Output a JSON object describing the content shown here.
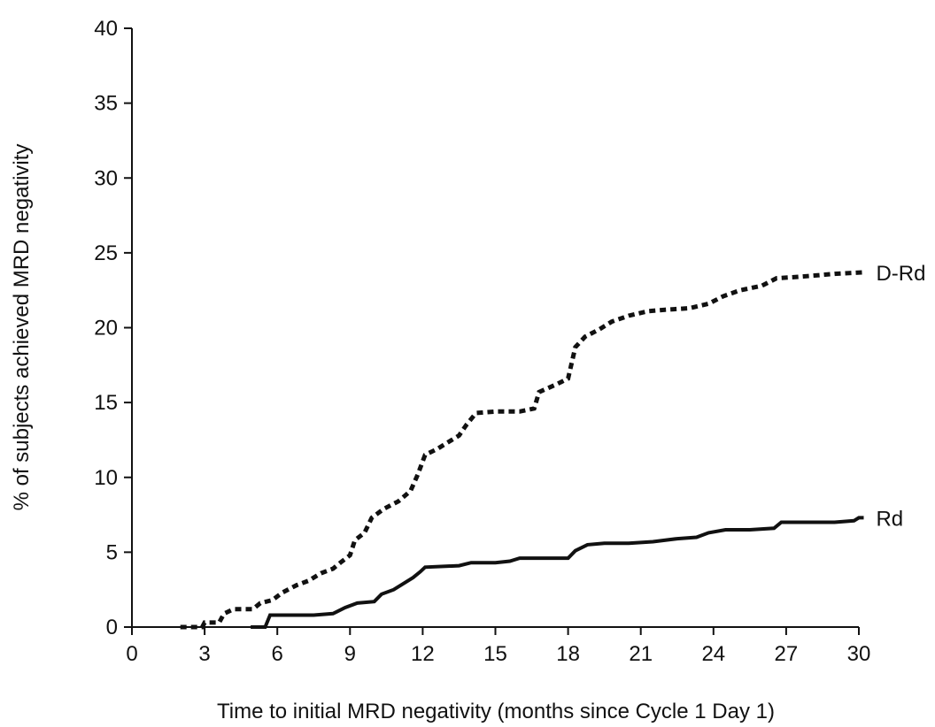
{
  "chart_data": {
    "type": "line",
    "title": "",
    "xlabel": "Time to initial MRD negativity (months since Cycle 1 Day 1)",
    "ylabel": "% of subjects achieved MRD negativity",
    "xlim": [
      0,
      30
    ],
    "ylim": [
      0,
      40
    ],
    "xticks": [
      0,
      3,
      6,
      9,
      12,
      15,
      18,
      21,
      24,
      27,
      30
    ],
    "yticks": [
      0,
      5,
      10,
      15,
      20,
      25,
      30,
      35,
      40
    ],
    "grid": false,
    "series": [
      {
        "name": "D-Rd",
        "style": "dashed",
        "color": "#111111",
        "points": [
          [
            2.0,
            0.0
          ],
          [
            2.9,
            0.0
          ],
          [
            3.0,
            0.3
          ],
          [
            3.6,
            0.3
          ],
          [
            3.8,
            0.9
          ],
          [
            4.2,
            1.2
          ],
          [
            5.0,
            1.2
          ],
          [
            5.3,
            1.6
          ],
          [
            5.8,
            1.8
          ],
          [
            6.2,
            2.3
          ],
          [
            6.8,
            2.8
          ],
          [
            7.3,
            3.1
          ],
          [
            7.8,
            3.6
          ],
          [
            8.3,
            3.9
          ],
          [
            8.6,
            4.3
          ],
          [
            9.0,
            4.8
          ],
          [
            9.2,
            5.8
          ],
          [
            9.6,
            6.3
          ],
          [
            9.9,
            7.3
          ],
          [
            10.4,
            7.9
          ],
          [
            11.0,
            8.4
          ],
          [
            11.5,
            9.1
          ],
          [
            11.8,
            10.2
          ],
          [
            12.1,
            11.5
          ],
          [
            12.6,
            11.9
          ],
          [
            13.0,
            12.3
          ],
          [
            13.5,
            12.8
          ],
          [
            13.8,
            13.5
          ],
          [
            14.2,
            14.3
          ],
          [
            15.0,
            14.4
          ],
          [
            16.0,
            14.4
          ],
          [
            16.6,
            14.6
          ],
          [
            16.8,
            15.7
          ],
          [
            17.5,
            16.2
          ],
          [
            18.0,
            16.6
          ],
          [
            18.3,
            18.7
          ],
          [
            18.7,
            19.4
          ],
          [
            19.3,
            19.9
          ],
          [
            19.8,
            20.4
          ],
          [
            20.5,
            20.8
          ],
          [
            21.3,
            21.1
          ],
          [
            22.0,
            21.2
          ],
          [
            23.0,
            21.3
          ],
          [
            23.8,
            21.6
          ],
          [
            24.4,
            22.1
          ],
          [
            25.1,
            22.5
          ],
          [
            26.0,
            22.8
          ],
          [
            26.6,
            23.3
          ],
          [
            27.5,
            23.4
          ],
          [
            28.3,
            23.5
          ],
          [
            29.0,
            23.6
          ],
          [
            30.2,
            23.7
          ]
        ]
      },
      {
        "name": "Rd",
        "style": "solid",
        "color": "#111111",
        "points": [
          [
            4.9,
            0.0
          ],
          [
            5.5,
            0.0
          ],
          [
            5.7,
            0.8
          ],
          [
            7.5,
            0.8
          ],
          [
            8.3,
            0.9
          ],
          [
            8.8,
            1.3
          ],
          [
            9.3,
            1.6
          ],
          [
            10.0,
            1.7
          ],
          [
            10.3,
            2.2
          ],
          [
            10.8,
            2.5
          ],
          [
            11.2,
            2.9
          ],
          [
            11.6,
            3.3
          ],
          [
            11.9,
            3.7
          ],
          [
            12.1,
            4.0
          ],
          [
            13.5,
            4.1
          ],
          [
            14.0,
            4.3
          ],
          [
            15.0,
            4.3
          ],
          [
            15.6,
            4.4
          ],
          [
            16.0,
            4.6
          ],
          [
            17.0,
            4.6
          ],
          [
            18.0,
            4.6
          ],
          [
            18.3,
            5.1
          ],
          [
            18.8,
            5.5
          ],
          [
            19.5,
            5.6
          ],
          [
            20.5,
            5.6
          ],
          [
            21.5,
            5.7
          ],
          [
            22.5,
            5.9
          ],
          [
            23.3,
            6.0
          ],
          [
            23.8,
            6.3
          ],
          [
            24.5,
            6.5
          ],
          [
            25.5,
            6.5
          ],
          [
            26.5,
            6.6
          ],
          [
            26.8,
            7.0
          ],
          [
            28.0,
            7.0
          ],
          [
            29.0,
            7.0
          ],
          [
            29.8,
            7.1
          ],
          [
            30.0,
            7.3
          ],
          [
            30.2,
            7.3
          ]
        ]
      }
    ]
  }
}
